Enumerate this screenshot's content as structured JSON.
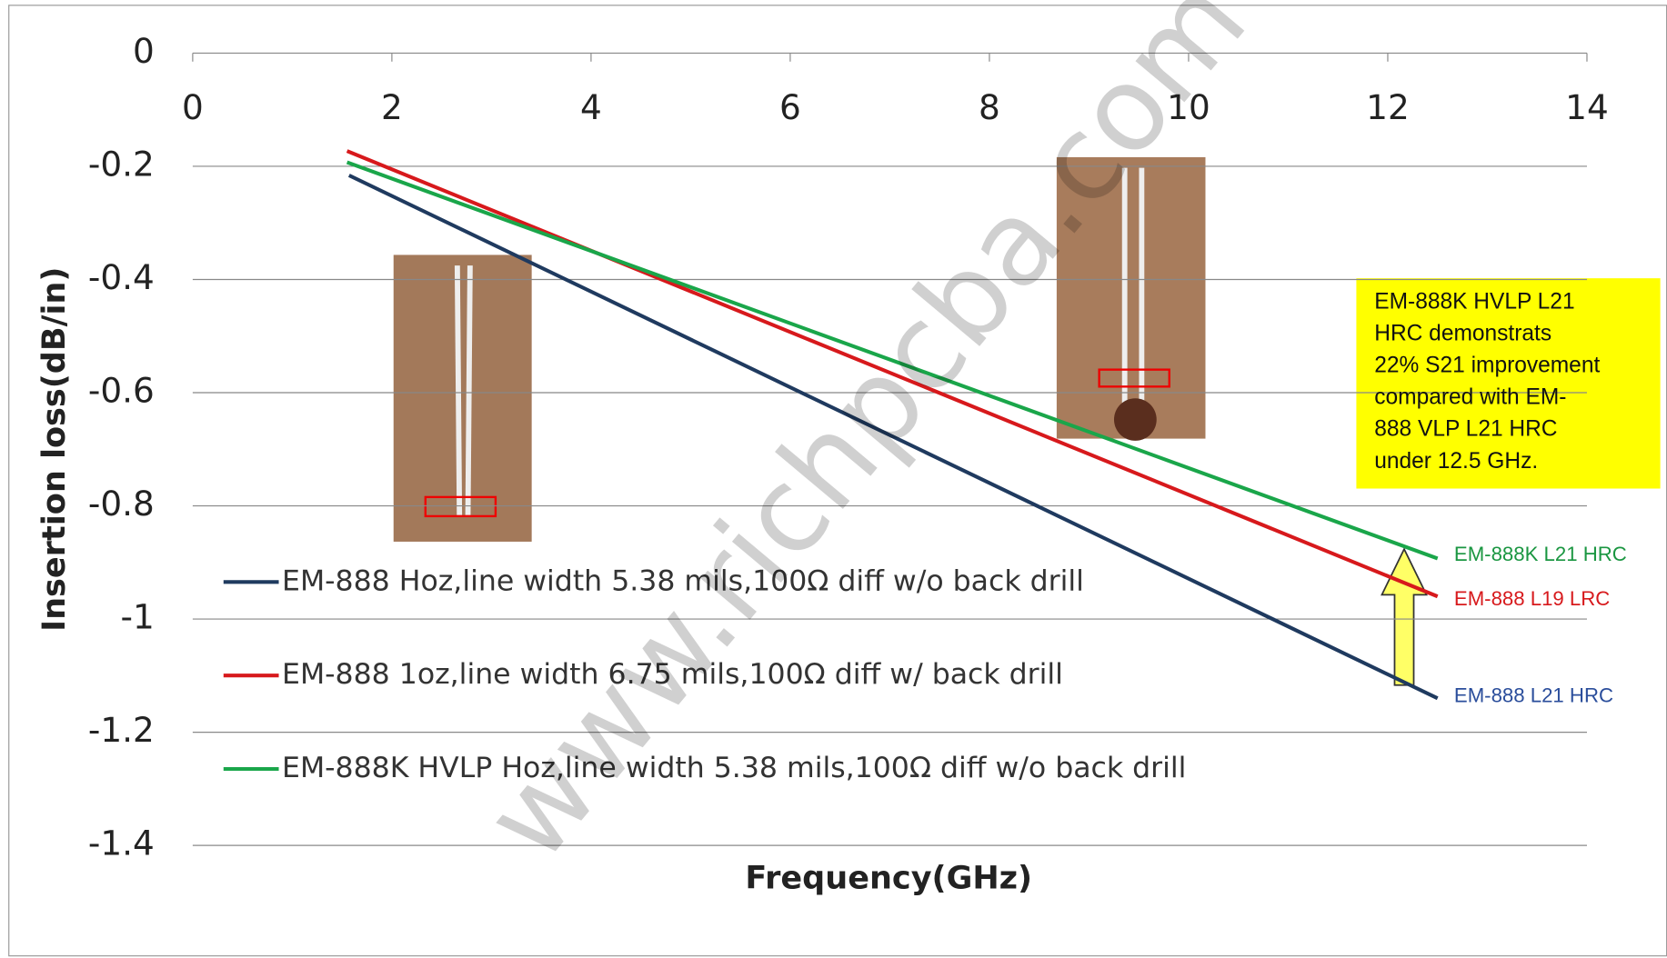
{
  "chart_data": {
    "type": "line",
    "xlabel": "Frequency(GHz)",
    "ylabel": "Insertion loss(dB/in)",
    "xlim": [
      0,
      14
    ],
    "xticks": [
      0,
      2,
      4,
      6,
      8,
      10,
      12,
      14
    ],
    "ylim": [
      -1.4,
      0
    ],
    "yticks": [
      0,
      -0.2,
      -0.4,
      -0.6,
      -0.8,
      -1,
      -1.2,
      -1.4
    ],
    "grid": true,
    "series": [
      {
        "name": "EM-888 Hoz,line width 5.38 mils,100Ω diff w/o back drill",
        "color": "#1f3a5f",
        "x": [
          1.57,
          12.5
        ],
        "values": [
          -0.216,
          -1.14
        ]
      },
      {
        "name": "EM-888 1oz,line width 6.75 mils,100Ω diff w/ back drill",
        "color": "#d7191c",
        "x": [
          1.55,
          12.5
        ],
        "values": [
          -0.173,
          -0.96
        ]
      },
      {
        "name": "EM-888K HVLP  Hoz,line width 5.38 mils,100Ω diff w/o back drill",
        "color": "#1aa64a",
        "x": [
          1.55,
          12.5
        ],
        "values": [
          -0.193,
          -0.893
        ]
      }
    ],
    "end_labels": [
      {
        "text": "EM-888K L21 HRC",
        "color": "#1a9641"
      },
      {
        "text": "EM-888 L19 LRC",
        "color": "#d7191c"
      },
      {
        "text": "EM-888 L21 HRC",
        "color": "#2a4d9b"
      }
    ],
    "callout": [
      "EM-888K HVLP L21",
      "HRC demonstrats",
      "22% S21 improvement",
      "compared with EM-",
      "888 VLP L21 HRC",
      "under 12.5 GHz."
    ],
    "watermark": "www.richpcba.com"
  }
}
